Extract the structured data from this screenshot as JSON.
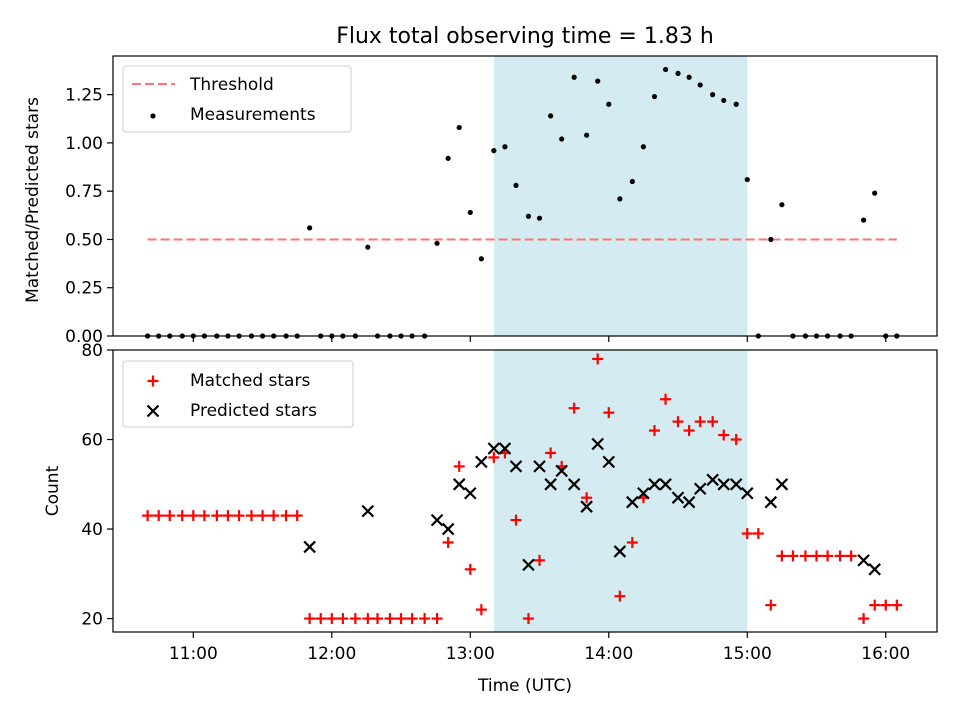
{
  "figure": {
    "title": "Flux total observing time = 1.83 h",
    "xlabel": "Time (UTC)",
    "xtick_labels": [
      "11:00",
      "12:00",
      "13:00",
      "14:00",
      "15:00",
      "16:00"
    ],
    "xtick_values": [
      11.0,
      12.0,
      13.0,
      14.0,
      15.0,
      16.0
    ],
    "xlim": [
      10.42,
      16.37
    ],
    "shaded_span": [
      13.17,
      15.0
    ],
    "colors": {
      "shade": "#d4ebf1",
      "threshold": "#ff7373",
      "measurements": "#000000",
      "matched": "#ff0000",
      "predicted": "#000000"
    }
  },
  "chart_data": [
    {
      "type": "scatter",
      "panel": "top",
      "ylabel": "Matched/Predicted stars",
      "ylim": [
        0,
        1.45
      ],
      "ytick_values": [
        0,
        0.25,
        0.5,
        0.75,
        1.0,
        1.25
      ],
      "ytick_labels": [
        "0.00",
        "0.25",
        "0.50",
        "0.75",
        "1.00",
        "1.25"
      ],
      "legend": {
        "placement": "upper-left",
        "entries": [
          "Threshold",
          "Measurements"
        ]
      },
      "threshold": {
        "name": "Threshold",
        "x": [
          10.67,
          16.08
        ],
        "y": [
          0.5,
          0.5
        ]
      },
      "series": [
        {
          "name": "Measurements",
          "points": [
            [
              10.67,
              0
            ],
            [
              10.75,
              0
            ],
            [
              10.83,
              0
            ],
            [
              10.92,
              0
            ],
            [
              11.0,
              0
            ],
            [
              11.08,
              0
            ],
            [
              11.17,
              0
            ],
            [
              11.25,
              0
            ],
            [
              11.33,
              0
            ],
            [
              11.42,
              0
            ],
            [
              11.5,
              0
            ],
            [
              11.58,
              0
            ],
            [
              11.67,
              0
            ],
            [
              11.75,
              0
            ],
            [
              11.84,
              0.56
            ],
            [
              11.92,
              0
            ],
            [
              12.0,
              0
            ],
            [
              12.08,
              0
            ],
            [
              12.17,
              0
            ],
            [
              12.26,
              0.46
            ],
            [
              12.33,
              0
            ],
            [
              12.42,
              0
            ],
            [
              12.5,
              0
            ],
            [
              12.58,
              0
            ],
            [
              12.67,
              0
            ],
            [
              12.76,
              0.48
            ],
            [
              12.84,
              0.92
            ],
            [
              12.92,
              1.08
            ],
            [
              13.0,
              0.64
            ],
            [
              13.08,
              0.4
            ],
            [
              13.17,
              0.96
            ],
            [
              13.25,
              0.98
            ],
            [
              13.33,
              0.78
            ],
            [
              13.42,
              0.62
            ],
            [
              13.5,
              0.61
            ],
            [
              13.58,
              1.14
            ],
            [
              13.66,
              1.02
            ],
            [
              13.75,
              1.34
            ],
            [
              13.84,
              1.04
            ],
            [
              13.92,
              1.32
            ],
            [
              14.0,
              1.2
            ],
            [
              14.08,
              0.71
            ],
            [
              14.17,
              0.8
            ],
            [
              14.25,
              0.98
            ],
            [
              14.33,
              1.24
            ],
            [
              14.41,
              1.38
            ],
            [
              14.5,
              1.36
            ],
            [
              14.58,
              1.34
            ],
            [
              14.66,
              1.3
            ],
            [
              14.75,
              1.25
            ],
            [
              14.83,
              1.22
            ],
            [
              14.92,
              1.2
            ],
            [
              15.0,
              0.81
            ],
            [
              15.08,
              0
            ],
            [
              15.17,
              0.5
            ],
            [
              15.25,
              0.68
            ],
            [
              15.33,
              0
            ],
            [
              15.42,
              0
            ],
            [
              15.5,
              0
            ],
            [
              15.58,
              0
            ],
            [
              15.67,
              0
            ],
            [
              15.75,
              0
            ],
            [
              15.84,
              0.6
            ],
            [
              15.92,
              0.74
            ],
            [
              16.0,
              0
            ],
            [
              16.08,
              0
            ]
          ]
        }
      ]
    },
    {
      "type": "scatter",
      "panel": "bottom",
      "ylabel": "Count",
      "ylim": [
        17,
        80
      ],
      "ytick_values": [
        20,
        40,
        60,
        80
      ],
      "ytick_labels": [
        "20",
        "40",
        "60",
        "80"
      ],
      "legend": {
        "placement": "upper-left",
        "entries": [
          "Matched stars",
          "Predicted stars"
        ]
      },
      "series": [
        {
          "name": "Matched stars",
          "marker": "plus",
          "points": [
            [
              10.67,
              43
            ],
            [
              10.75,
              43
            ],
            [
              10.83,
              43
            ],
            [
              10.92,
              43
            ],
            [
              11.0,
              43
            ],
            [
              11.08,
              43
            ],
            [
              11.17,
              43
            ],
            [
              11.25,
              43
            ],
            [
              11.33,
              43
            ],
            [
              11.42,
              43
            ],
            [
              11.5,
              43
            ],
            [
              11.58,
              43
            ],
            [
              11.67,
              43
            ],
            [
              11.75,
              43
            ],
            [
              11.84,
              20
            ],
            [
              11.92,
              20
            ],
            [
              12.0,
              20
            ],
            [
              12.08,
              20
            ],
            [
              12.17,
              20
            ],
            [
              12.26,
              20
            ],
            [
              12.33,
              20
            ],
            [
              12.42,
              20
            ],
            [
              12.5,
              20
            ],
            [
              12.58,
              20
            ],
            [
              12.67,
              20
            ],
            [
              12.76,
              20
            ],
            [
              12.84,
              37
            ],
            [
              12.92,
              54
            ],
            [
              13.0,
              31
            ],
            [
              13.08,
              22
            ],
            [
              13.17,
              56
            ],
            [
              13.25,
              57
            ],
            [
              13.33,
              42
            ],
            [
              13.42,
              20
            ],
            [
              13.5,
              33
            ],
            [
              13.58,
              57
            ],
            [
              13.66,
              54
            ],
            [
              13.75,
              67
            ],
            [
              13.84,
              47
            ],
            [
              13.92,
              78
            ],
            [
              14.0,
              66
            ],
            [
              14.08,
              25
            ],
            [
              14.17,
              37
            ],
            [
              14.25,
              47
            ],
            [
              14.33,
              62
            ],
            [
              14.41,
              69
            ],
            [
              14.5,
              64
            ],
            [
              14.58,
              62
            ],
            [
              14.66,
              64
            ],
            [
              14.75,
              64
            ],
            [
              14.83,
              61
            ],
            [
              14.92,
              60
            ],
            [
              15.0,
              39
            ],
            [
              15.08,
              39
            ],
            [
              15.17,
              23
            ],
            [
              15.25,
              34
            ],
            [
              15.33,
              34
            ],
            [
              15.42,
              34
            ],
            [
              15.5,
              34
            ],
            [
              15.58,
              34
            ],
            [
              15.67,
              34
            ],
            [
              15.75,
              34
            ],
            [
              15.84,
              20
            ],
            [
              15.92,
              23
            ],
            [
              16.0,
              23
            ],
            [
              16.08,
              23
            ]
          ]
        },
        {
          "name": "Predicted stars",
          "marker": "x",
          "points": [
            [
              11.84,
              36
            ],
            [
              12.26,
              44
            ],
            [
              12.76,
              42
            ],
            [
              12.84,
              40
            ],
            [
              12.92,
              50
            ],
            [
              13.0,
              48
            ],
            [
              13.08,
              55
            ],
            [
              13.17,
              58
            ],
            [
              13.25,
              58
            ],
            [
              13.33,
              54
            ],
            [
              13.42,
              32
            ],
            [
              13.5,
              54
            ],
            [
              13.58,
              50
            ],
            [
              13.66,
              53
            ],
            [
              13.75,
              50
            ],
            [
              13.84,
              45
            ],
            [
              13.92,
              59
            ],
            [
              14.0,
              55
            ],
            [
              14.08,
              35
            ],
            [
              14.17,
              46
            ],
            [
              14.25,
              48
            ],
            [
              14.33,
              50
            ],
            [
              14.41,
              50
            ],
            [
              14.5,
              47
            ],
            [
              14.58,
              46
            ],
            [
              14.66,
              49
            ],
            [
              14.75,
              51
            ],
            [
              14.83,
              50
            ],
            [
              14.92,
              50
            ],
            [
              15.0,
              48
            ],
            [
              15.17,
              46
            ],
            [
              15.25,
              50
            ],
            [
              15.84,
              33
            ],
            [
              15.92,
              31
            ]
          ]
        }
      ]
    }
  ]
}
